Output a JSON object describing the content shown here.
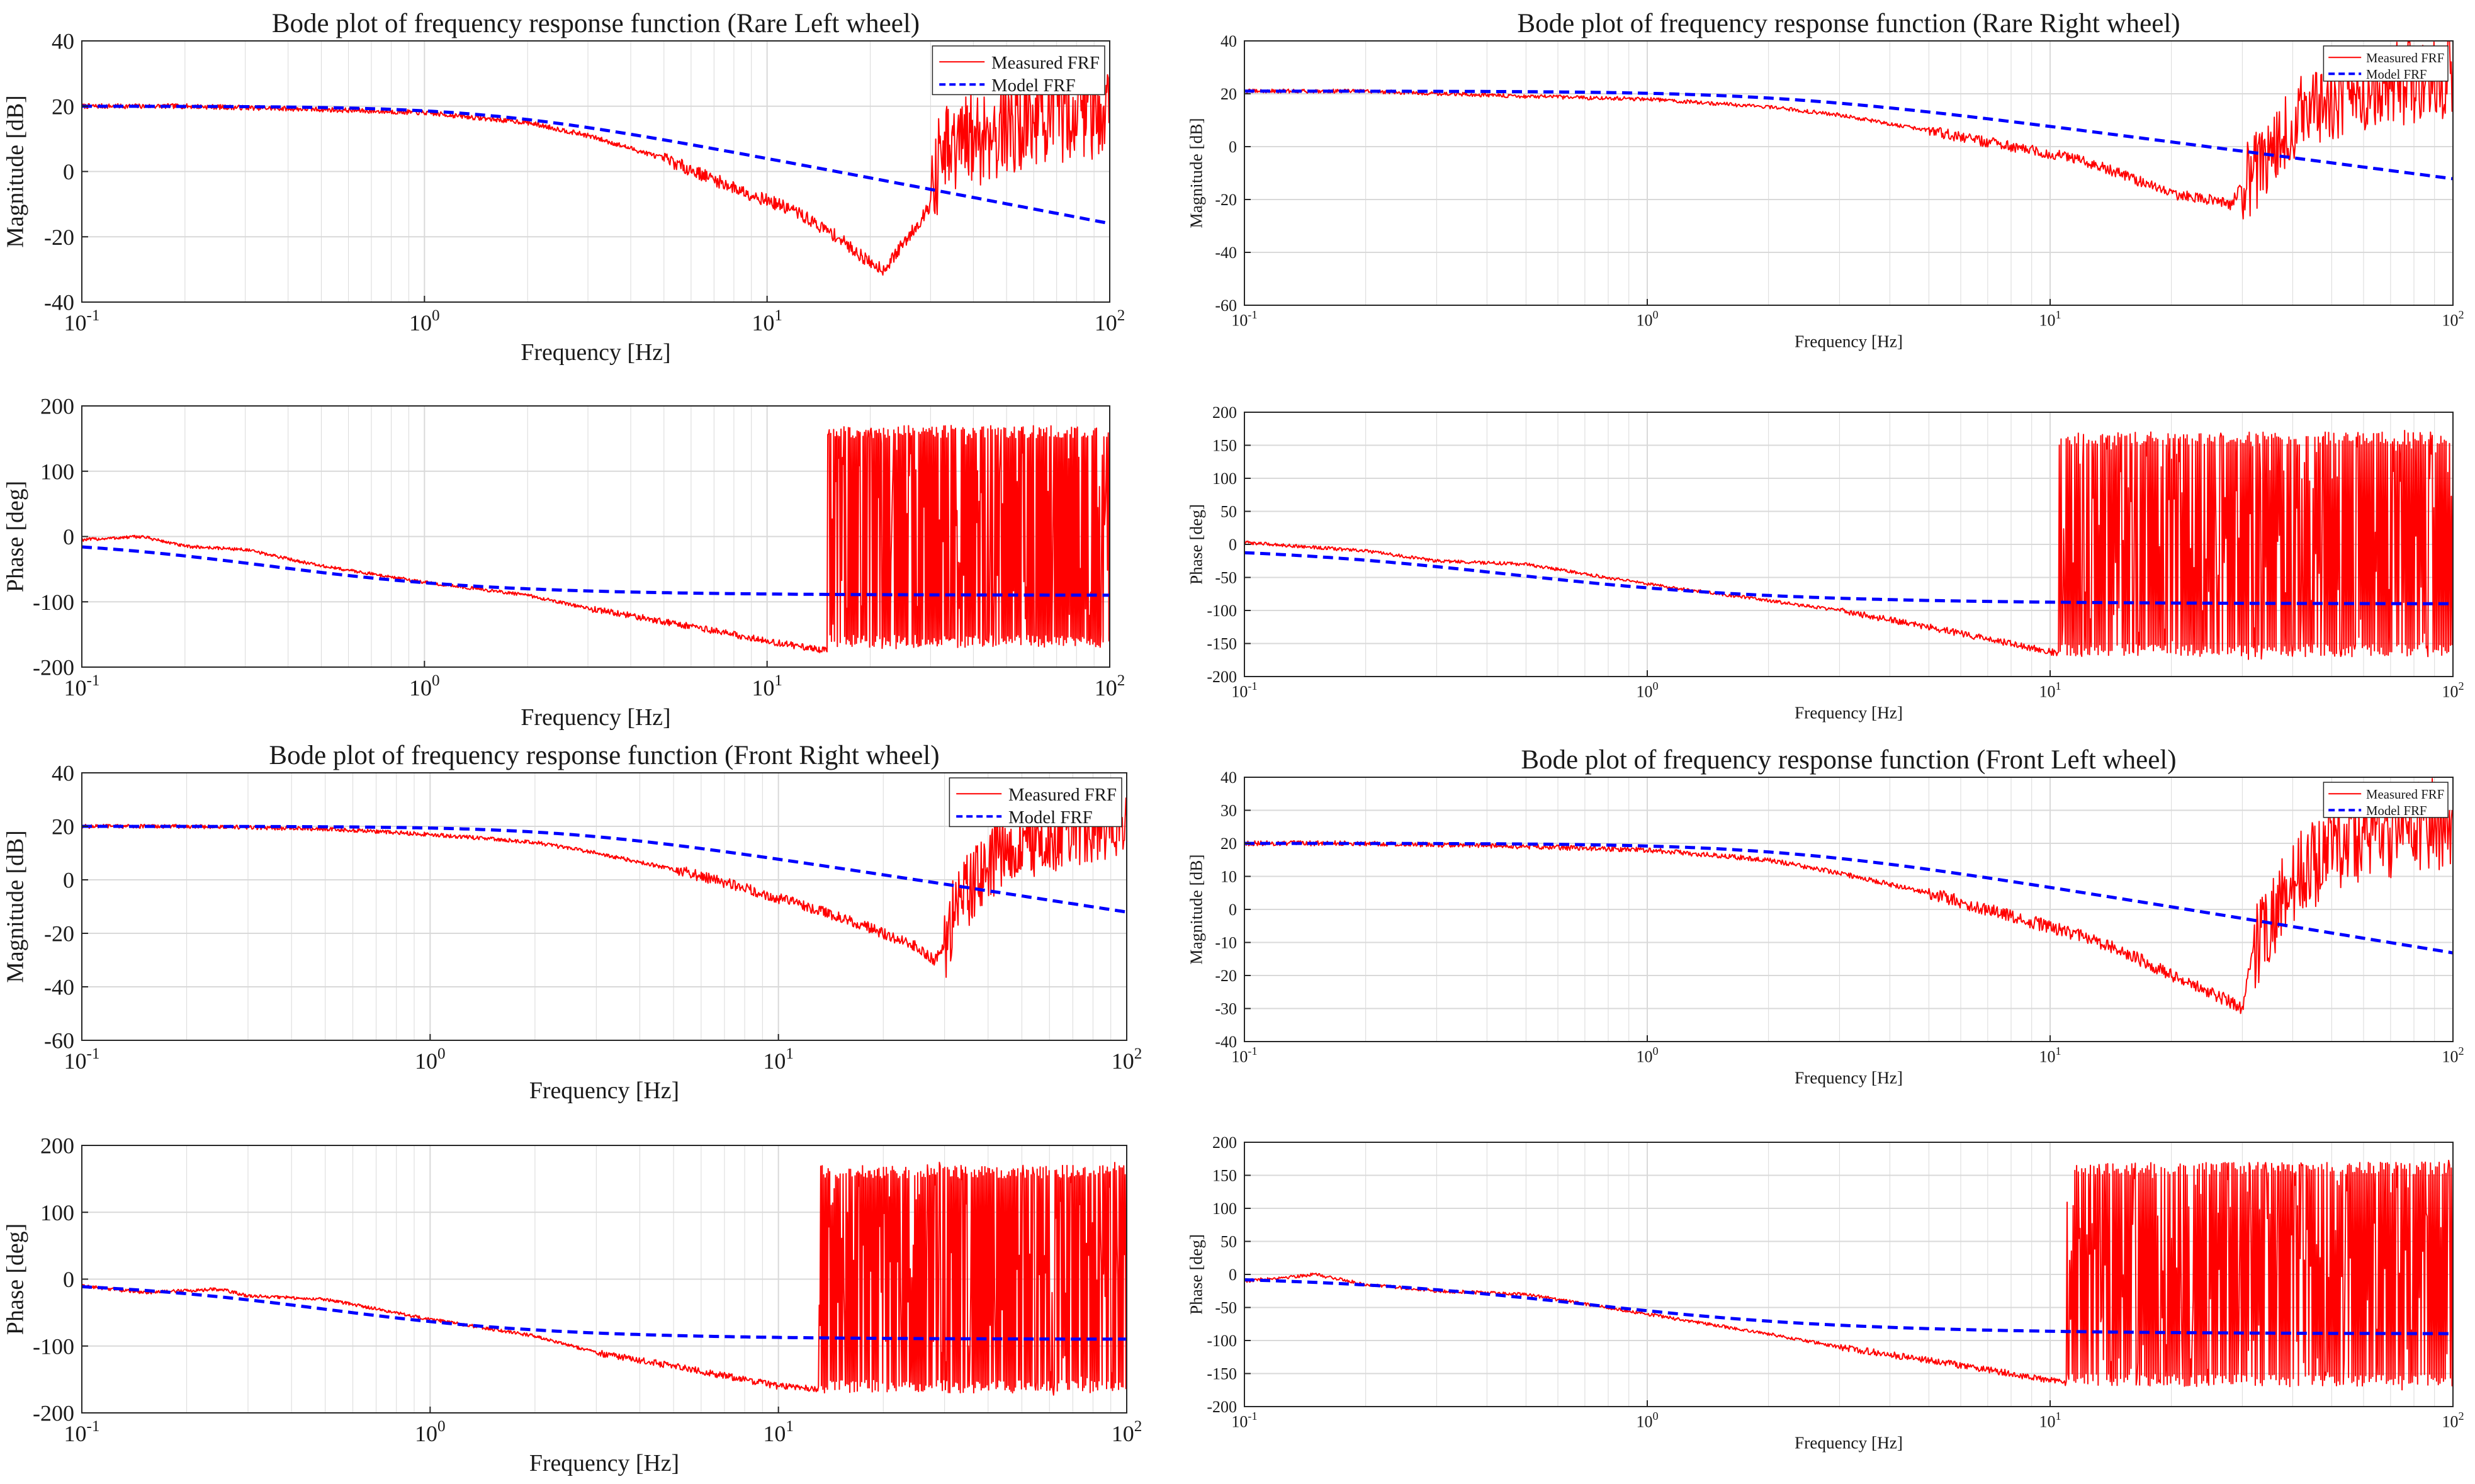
{
  "colors": {
    "measured": "#ff0000",
    "model": "#0000ff",
    "grid": "#d9d9d9",
    "axis": "#262626",
    "background": "#ffffff"
  },
  "chart_data": [
    {
      "id": "rl-mag",
      "type": "line",
      "log_x": true,
      "title": "Bode plot of frequency response function (Rare Left wheel)",
      "xlabel": "Frequency [Hz]",
      "ylabel": "Magnitude [dB]",
      "xlim": [
        0.1,
        100
      ],
      "ylim": [
        -40,
        40
      ],
      "xtick_bases": [
        "10",
        "10",
        "10",
        "10"
      ],
      "xtick_exps": [
        "-1",
        "0",
        "1",
        "2"
      ],
      "yticks": [
        "-40",
        "-20",
        "0",
        "20",
        "40"
      ],
      "legend": {
        "position": "top-right",
        "entries": [
          "Measured FRF",
          "Model FRF"
        ]
      },
      "series": [
        {
          "name": "Measured FRF",
          "kind": "measured_mag",
          "x": [
            0.1,
            0.2,
            0.5,
            1,
            2,
            3,
            5,
            8,
            12,
            16,
            20,
            22,
            25,
            28,
            30,
            32,
            40,
            50,
            70,
            100
          ],
          "y": [
            20,
            20,
            19,
            18,
            15,
            11,
            4,
            -5,
            -12,
            -20,
            -28,
            -30,
            -22,
            -15,
            -10,
            5,
            12,
            16,
            20,
            22
          ],
          "noise_from": 30,
          "noise_amp": 16
        },
        {
          "name": "Model FRF",
          "kind": "model_mag",
          "gain_db": 20,
          "fc": 1.6
        }
      ]
    },
    {
      "id": "rl-phase",
      "type": "line",
      "log_x": true,
      "xlabel": "Frequency [Hz]",
      "ylabel": "Phase [deg]",
      "xlim": [
        0.1,
        100
      ],
      "ylim": [
        -200,
        200
      ],
      "xtick_bases": [
        "10",
        "10",
        "10",
        "10"
      ],
      "xtick_exps": [
        "-1",
        "0",
        "1",
        "2"
      ],
      "yticks": [
        "-200",
        "-100",
        "0",
        "100",
        "200"
      ],
      "series": [
        {
          "name": "Measured FRF",
          "kind": "measured_phase",
          "x": [
            0.1,
            0.15,
            0.2,
            0.3,
            0.5,
            1,
            2,
            3,
            5,
            8,
            10,
            13,
            15
          ],
          "y": [
            -5,
            0,
            -15,
            -20,
            -45,
            -70,
            -90,
            -110,
            -130,
            -150,
            -160,
            -170,
            -175
          ],
          "wrap_from": 15
        },
        {
          "name": "Model FRF",
          "kind": "model_phase",
          "fc": 0.35
        }
      ]
    },
    {
      "id": "rr-mag",
      "type": "line",
      "log_x": true,
      "title": "Bode plot of frequency response function (Rare Right wheel)",
      "xlabel": "Frequency [Hz]",
      "ylabel": "Magnitude [dB]",
      "xlim": [
        0.1,
        100
      ],
      "ylim": [
        -60,
        40
      ],
      "xtick_bases": [
        "10",
        "10",
        "10",
        "10"
      ],
      "xtick_exps": [
        "-1",
        "0",
        "1",
        "2"
      ],
      "yticks": [
        "-60",
        "-40",
        "-20",
        "0",
        "20",
        "40"
      ],
      "legend": {
        "position": "top-right",
        "entries": [
          "Measured FRF",
          "Model FRF"
        ]
      },
      "series": [
        {
          "name": "Measured FRF",
          "kind": "measured_mag",
          "x": [
            0.1,
            0.2,
            0.5,
            1,
            2,
            3,
            5,
            8,
            12,
            16,
            20,
            25,
            28,
            30,
            32,
            40,
            50,
            70,
            100
          ],
          "y": [
            21,
            21,
            19,
            18,
            15,
            12,
            6,
            0,
            -5,
            -12,
            -18,
            -20,
            -22,
            -15,
            -10,
            10,
            20,
            25,
            28
          ],
          "noise_from": 30,
          "noise_amp": 16
        },
        {
          "name": "Model FRF",
          "kind": "model_mag",
          "gain_db": 21,
          "fc": 2.2
        }
      ]
    },
    {
      "id": "rr-phase",
      "type": "line",
      "log_x": true,
      "xlabel": "Frequency [Hz]",
      "ylabel": "Phase [deg]",
      "xlim": [
        0.1,
        100
      ],
      "ylim": [
        -200,
        200
      ],
      "xtick_bases": [
        "10",
        "10",
        "10",
        "10"
      ],
      "xtick_exps": [
        "-1",
        "0",
        "1",
        "2"
      ],
      "yticks": [
        "-200",
        "-150",
        "-100",
        "-50",
        "0",
        "50",
        "100",
        "150",
        "200"
      ],
      "series": [
        {
          "name": "Measured FRF",
          "kind": "measured_phase",
          "x": [
            0.1,
            0.2,
            0.3,
            0.5,
            1,
            2,
            3,
            5,
            8,
            10.5
          ],
          "y": [
            3,
            -10,
            -25,
            -30,
            -60,
            -85,
            -100,
            -125,
            -150,
            -165
          ],
          "wrap_from": 10.5
        },
        {
          "name": "Model FRF",
          "kind": "model_phase",
          "fc": 0.45
        }
      ]
    },
    {
      "id": "fr-mag",
      "type": "line",
      "log_x": true,
      "title": "Bode plot of frequency response function (Front Right wheel)",
      "xlabel": "Frequency [Hz]",
      "ylabel": "Magnitude [dB]",
      "xlim": [
        0.1,
        100
      ],
      "ylim": [
        -60,
        40
      ],
      "xtick_bases": [
        "10",
        "10",
        "10",
        "10"
      ],
      "xtick_exps": [
        "-1",
        "0",
        "1",
        "2"
      ],
      "yticks": [
        "-60",
        "-40",
        "-20",
        "0",
        "20",
        "40"
      ],
      "legend": {
        "position": "top-right",
        "entries": [
          "Measured FRF",
          "Model FRF"
        ]
      },
      "series": [
        {
          "name": "Measured FRF",
          "kind": "measured_mag",
          "x": [
            0.1,
            0.2,
            0.5,
            1,
            2,
            3,
            5,
            8,
            12,
            16,
            20,
            25,
            28,
            30,
            32,
            40,
            50,
            70,
            100
          ],
          "y": [
            20,
            20,
            19,
            17,
            14,
            10,
            4,
            -3,
            -10,
            -15,
            -20,
            -25,
            -30,
            -25,
            -10,
            8,
            15,
            20,
            22
          ],
          "noise_from": 30,
          "noise_amp": 14
        },
        {
          "name": "Model FRF",
          "kind": "model_mag",
          "gain_db": 20,
          "fc": 2.5
        }
      ]
    },
    {
      "id": "fr-phase",
      "type": "line",
      "log_x": true,
      "xlabel": "Frequency [Hz]",
      "ylabel": "Phase [deg]",
      "xlim": [
        0.1,
        100
      ],
      "ylim": [
        -200,
        200
      ],
      "xtick_bases": [
        "10",
        "10",
        "10",
        "10"
      ],
      "xtick_exps": [
        "-1",
        "0",
        "1",
        "2"
      ],
      "yticks": [
        "-200",
        "-100",
        "0",
        "100",
        "200"
      ],
      "series": [
        {
          "name": "Measured FRF",
          "kind": "measured_phase",
          "x": [
            0.1,
            0.15,
            0.25,
            0.3,
            0.5,
            1,
            2,
            3,
            5,
            8,
            10,
            13
          ],
          "y": [
            -10,
            -20,
            -15,
            -25,
            -30,
            -60,
            -85,
            -110,
            -130,
            -150,
            -160,
            -165
          ],
          "wrap_from": 13
        },
        {
          "name": "Model FRF",
          "kind": "model_phase",
          "fc": 0.5
        }
      ]
    },
    {
      "id": "fl-mag",
      "type": "line",
      "log_x": true,
      "title": "Bode plot of frequency response function (Front Left wheel)",
      "xlabel": "Frequency [Hz]",
      "ylabel": "Magnitude [dB]",
      "xlim": [
        0.1,
        100
      ],
      "ylim": [
        -40,
        40
      ],
      "xtick_bases": [
        "10",
        "10",
        "10",
        "10"
      ],
      "xtick_exps": [
        "-1",
        "0",
        "1",
        "2"
      ],
      "yticks": [
        "-40",
        "-30",
        "-20",
        "-10",
        "0",
        "10",
        "20",
        "30",
        "40"
      ],
      "legend": {
        "position": "top-right",
        "entries": [
          "Measured FRF",
          "Model FRF"
        ]
      },
      "series": [
        {
          "name": "Measured FRF",
          "kind": "measured_mag",
          "x": [
            0.1,
            0.2,
            0.5,
            1,
            2,
            3,
            5,
            8,
            12,
            16,
            20,
            25,
            28,
            30,
            32,
            40,
            50,
            70,
            100
          ],
          "y": [
            20,
            20,
            19,
            18,
            15,
            11,
            5,
            -2,
            -8,
            -14,
            -20,
            -25,
            -28,
            -30,
            -10,
            10,
            20,
            25,
            28
          ],
          "noise_from": 32,
          "noise_amp": 14
        },
        {
          "name": "Model FRF",
          "kind": "model_mag",
          "gain_db": 20,
          "fc": 2.2
        }
      ]
    },
    {
      "id": "fl-phase",
      "type": "line",
      "log_x": true,
      "xlabel": "Frequency [Hz]",
      "ylabel": "Phase [deg]",
      "xlim": [
        0.1,
        100
      ],
      "ylim": [
        -200,
        200
      ],
      "xtick_bases": [
        "10",
        "10",
        "10",
        "10"
      ],
      "xtick_exps": [
        "-1",
        "0",
        "1",
        "2"
      ],
      "yticks": [
        "-200",
        "-150",
        "-100",
        "-50",
        "0",
        "50",
        "100",
        "150",
        "200"
      ],
      "series": [
        {
          "name": "Measured FRF",
          "kind": "measured_phase",
          "x": [
            0.1,
            0.15,
            0.2,
            0.3,
            0.5,
            1,
            2,
            3,
            5,
            8,
            11
          ],
          "y": [
            -10,
            0,
            -15,
            -25,
            -30,
            -60,
            -90,
            -110,
            -130,
            -150,
            -165
          ],
          "wrap_from": 11
        },
        {
          "name": "Model FRF",
          "kind": "model_phase",
          "fc": 0.7
        }
      ]
    }
  ]
}
